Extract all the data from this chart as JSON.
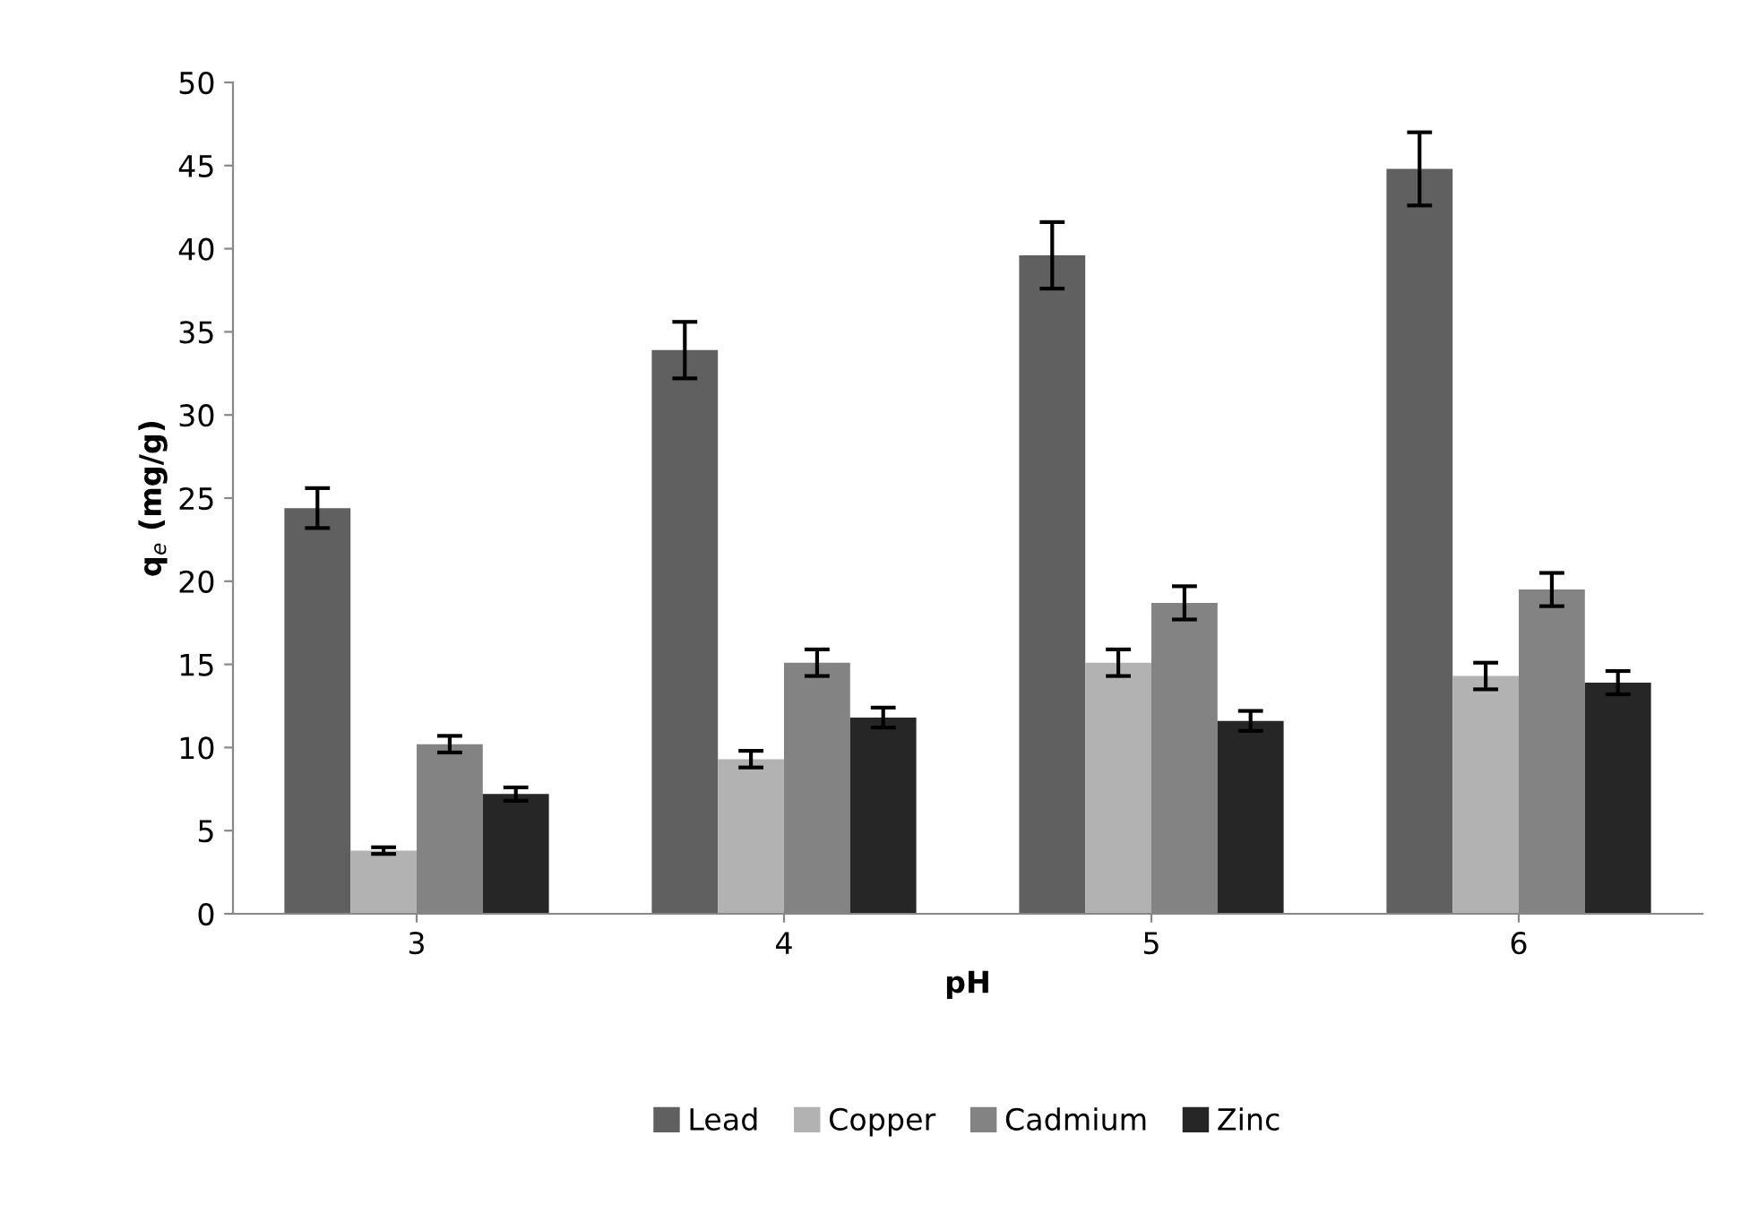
{
  "chart_data": {
    "type": "bar",
    "xlabel": "pH",
    "ylabel": "q$_{e}$ (mg/g)",
    "categories": [
      "3",
      "4",
      "5",
      "6"
    ],
    "series": [
      {
        "name": "Lead",
        "color": "#606060",
        "values": [
          24.4,
          33.9,
          39.6,
          44.8
        ],
        "errors": [
          1.2,
          1.7,
          2.0,
          2.2
        ]
      },
      {
        "name": "Copper",
        "color": "#b2b2b2",
        "values": [
          3.8,
          9.3,
          15.1,
          14.3
        ],
        "errors": [
          0.2,
          0.5,
          0.8,
          0.8
        ]
      },
      {
        "name": "Cadmium",
        "color": "#838383",
        "values": [
          10.2,
          15.1,
          18.7,
          19.5
        ],
        "errors": [
          0.5,
          0.8,
          1.0,
          1.0
        ]
      },
      {
        "name": "Zinc",
        "color": "#262626",
        "values": [
          7.2,
          11.8,
          11.6,
          13.9
        ],
        "errors": [
          0.4,
          0.6,
          0.6,
          0.7
        ]
      }
    ],
    "ylim": [
      0,
      50
    ],
    "yticks": [
      0,
      5,
      10,
      15,
      20,
      25,
      30,
      35,
      40,
      45,
      50
    ],
    "grid": false,
    "legend": "bottom"
  }
}
